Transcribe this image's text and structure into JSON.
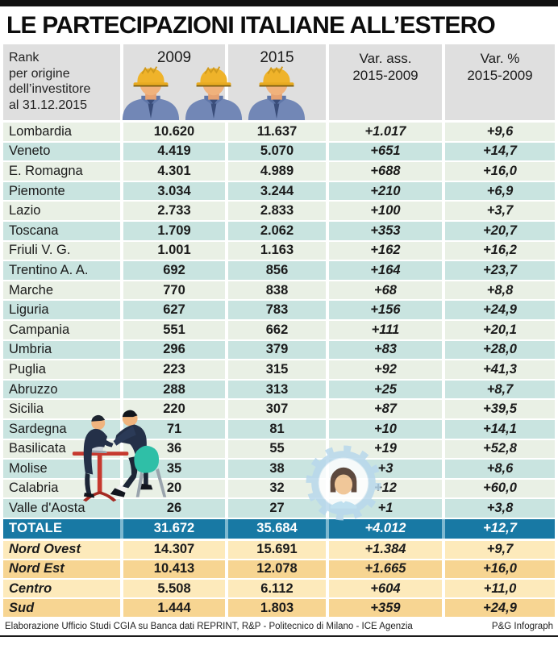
{
  "page": {
    "title": "LE PARTECIPAZIONI ITALIANE ALL’ESTERO",
    "source": "Elaborazione Ufficio Studi CGIA su Banca dati REPRINT, R&P - Politecnico di Milano - ICE Agenzia",
    "credit": "P&G Infograph"
  },
  "header": {
    "rank_lines": [
      "Rank",
      "per origine",
      "dell’investitore",
      "al 31.12.2015"
    ],
    "col_2009": "2009",
    "col_2015": "2015",
    "col_var_ass": [
      "Var. ass.",
      "2015-2009"
    ],
    "col_var_pct": [
      "Var. %",
      "2015-2009"
    ]
  },
  "icons": {
    "worker": "construction-worker-icon",
    "meeting": "business-meeting-illustration",
    "gear_woman": "worker-woman-gear-illustration"
  },
  "colors": {
    "row_pale": "#e9f0e5",
    "row_teal": "#c9e4e0",
    "total_row_blue": "#1879a4",
    "macro_light": "#fdeabb",
    "macro_dark": "#f7d592",
    "header_gray": "#dfdfdf",
    "hat_yellow": "#efb32a",
    "chair_teal": "#2fbfa7",
    "table_red": "#c6392f"
  },
  "chart_data": {
    "type": "table",
    "title": "LE PARTECIPAZIONI ITALIANE ALL’ESTERO",
    "columns": [
      "Rank per origine dell’investitore al 31.12.2015",
      "2009",
      "2015",
      "Var. ass. 2015-2009",
      "Var. % 2015-2009"
    ],
    "rows": [
      [
        "Lombardia",
        "10.620",
        "11.637",
        "+1.017",
        "+9,6"
      ],
      [
        "Veneto",
        "4.419",
        "5.070",
        "+651",
        "+14,7"
      ],
      [
        "E. Romagna",
        "4.301",
        "4.989",
        "+688",
        "+16,0"
      ],
      [
        "Piemonte",
        "3.034",
        "3.244",
        "+210",
        "+6,9"
      ],
      [
        "Lazio",
        "2.733",
        "2.833",
        "+100",
        "+3,7"
      ],
      [
        "Toscana",
        "1.709",
        "2.062",
        "+353",
        "+20,7"
      ],
      [
        "Friuli V. G.",
        "1.001",
        "1.163",
        "+162",
        "+16,2"
      ],
      [
        "Trentino A. A.",
        "692",
        "856",
        "+164",
        "+23,7"
      ],
      [
        "Marche",
        "770",
        "838",
        "+68",
        "+8,8"
      ],
      [
        "Liguria",
        "627",
        "783",
        "+156",
        "+24,9"
      ],
      [
        "Campania",
        "551",
        "662",
        "+111",
        "+20,1"
      ],
      [
        "Umbria",
        "296",
        "379",
        "+83",
        "+28,0"
      ],
      [
        "Puglia",
        "223",
        "315",
        "+92",
        "+41,3"
      ],
      [
        "Abruzzo",
        "288",
        "313",
        "+25",
        "+8,7"
      ],
      [
        "Sicilia",
        "220",
        "307",
        "+87",
        "+39,5"
      ],
      [
        "Sardegna",
        "71",
        "81",
        "+10",
        "+14,1"
      ],
      [
        "Basilicata",
        "36",
        "55",
        "+19",
        "+52,8"
      ],
      [
        "Molise",
        "35",
        "38",
        "+3",
        "+8,6"
      ],
      [
        "Calabria",
        "20",
        "32",
        "+12",
        "+60,0"
      ],
      [
        "Valle d'Aosta",
        "26",
        "27",
        "+1",
        "+3,8"
      ]
    ],
    "totale": [
      "TOTALE",
      "31.672",
      "35.684",
      "+4.012",
      "+12,7"
    ],
    "macro_rows": [
      [
        "Nord Ovest",
        "14.307",
        "15.691",
        "+1.384",
        "+9,7"
      ],
      [
        "Nord Est",
        "10.413",
        "12.078",
        "+1.665",
        "+16,0"
      ],
      [
        "Centro",
        "5.508",
        "6.112",
        "+604",
        "+11,0"
      ],
      [
        "Sud",
        "1.444",
        "1.803",
        "+359",
        "+24,9"
      ]
    ]
  }
}
